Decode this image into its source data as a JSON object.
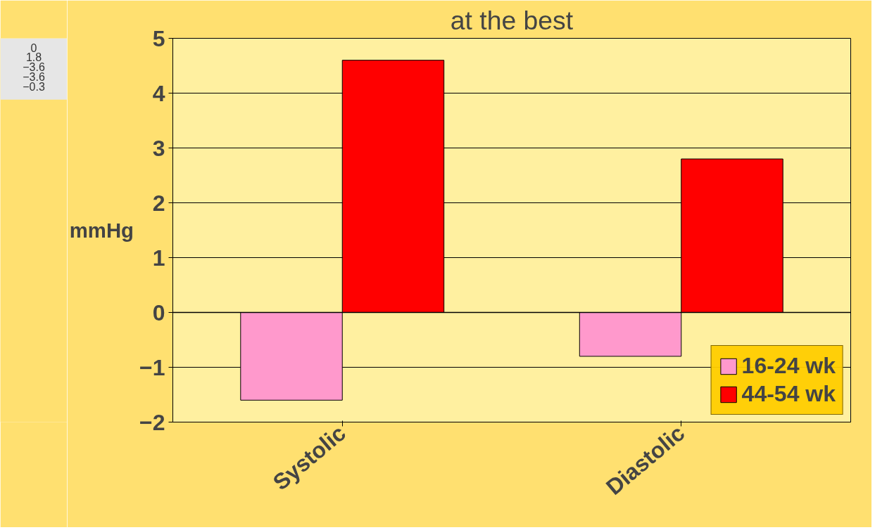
{
  "chart_data": {
    "type": "bar",
    "title": "at the best",
    "ylabel": "mmHg",
    "categories": [
      "Systolic",
      "Diastolic"
    ],
    "series": [
      {
        "name": "16-24 wk",
        "color": "#ff99cc",
        "values": [
          -1.6,
          -0.8
        ]
      },
      {
        "name": "44-54 wk",
        "color": "#ff0000",
        "values": [
          4.6,
          2.8
        ]
      }
    ],
    "ylim": [
      -2,
      5
    ],
    "yticks": [
      -2,
      -1,
      0,
      1,
      2,
      3,
      4,
      5
    ],
    "grid": "y",
    "legend": "bottom right",
    "annotations": [
      "0",
      "1.8",
      "−3.6",
      "−3.6",
      "−0.3"
    ]
  }
}
